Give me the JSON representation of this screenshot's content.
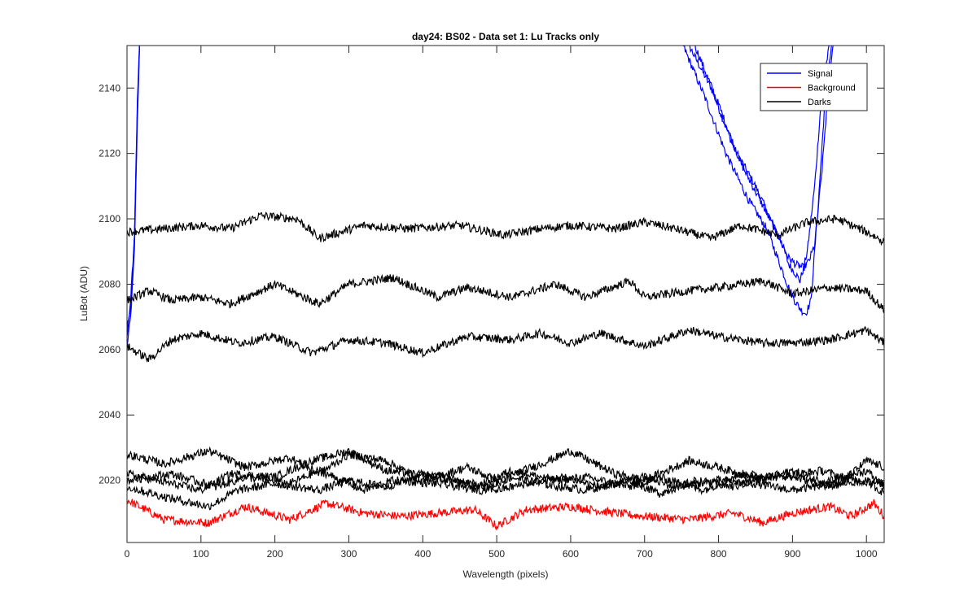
{
  "chart_data": {
    "type": "line",
    "title": "day24: BS02 - Data set 1: Lu Tracks only",
    "xlabel": "Wavelength (pixels)",
    "ylabel": "LuBot (ADU)",
    "xlim": [
      0,
      1024
    ],
    "ylim": [
      2001,
      2153
    ],
    "xticks": [
      0,
      100,
      200,
      300,
      400,
      500,
      600,
      700,
      800,
      900,
      1000
    ],
    "yticks": [
      2020,
      2040,
      2060,
      2080,
      2100,
      2120,
      2140
    ],
    "grid": false,
    "legend": {
      "location": "top-right",
      "entries": [
        "Signal",
        "Background",
        "Darks"
      ]
    },
    "colors": {
      "Signal": "#0000ff",
      "Background": "#ff0000",
      "Darks": "#000000"
    },
    "series": [
      {
        "name": "Signal",
        "group": "Signal",
        "color": "#0000ff",
        "x": [
          0,
          5,
          10,
          14,
          17,
          760,
          790,
          820,
          850,
          870,
          885,
          895,
          905,
          910,
          915,
          920,
          930,
          940,
          950
        ],
        "y": [
          2061,
          2070,
          2090,
          2130,
          2153,
          2153,
          2140,
          2122,
          2110,
          2100,
          2093,
          2086,
          2083,
          2081,
          2085,
          2090,
          2110,
          2140,
          2153
        ]
      },
      {
        "group": "Signal",
        "color": "#0000ff",
        "x": [
          0,
          5,
          10,
          14,
          17,
          752,
          780,
          810,
          840,
          865,
          880,
          893,
          903,
          912,
          918,
          925,
          935,
          945,
          953
        ],
        "y": [
          2066,
          2075,
          2095,
          2135,
          2153,
          2153,
          2138,
          2120,
          2106,
          2097,
          2088,
          2080,
          2075,
          2072,
          2071,
          2075,
          2105,
          2140,
          2153
        ]
      },
      {
        "group": "Signal",
        "color": "#0000ff",
        "x": [
          0,
          5,
          10,
          14,
          17,
          768,
          800,
          830,
          860,
          880,
          895,
          905,
          915,
          922,
          930,
          940,
          950,
          955
        ],
        "y": [
          2064,
          2073,
          2093,
          2133,
          2153,
          2153,
          2135,
          2117,
          2104,
          2095,
          2088,
          2086,
          2085,
          2087,
          2092,
          2115,
          2145,
          2153
        ]
      },
      {
        "name": "Background",
        "group": "Background",
        "color": "#ff0000",
        "x": [
          0,
          50,
          110,
          160,
          220,
          270,
          320,
          370,
          420,
          470,
          500,
          540,
          600,
          660,
          700,
          760,
          820,
          860,
          900,
          950,
          980,
          1010,
          1024
        ],
        "y": [
          2014,
          2008,
          2007,
          2012,
          2008,
          2013,
          2010,
          2009,
          2010,
          2011,
          2006,
          2011,
          2012,
          2010,
          2009,
          2008,
          2010,
          2007,
          2010,
          2012,
          2009,
          2013,
          2009
        ]
      },
      {
        "name": "Darks",
        "group": "Darks",
        "color": "#000000",
        "x": [
          0,
          50,
          100,
          140,
          180,
          230,
          260,
          320,
          380,
          450,
          510,
          560,
          600,
          660,
          700,
          740,
          790,
          830,
          880,
          920,
          960,
          1000,
          1024
        ],
        "y": [
          2096,
          2097,
          2098,
          2097,
          2101,
          2100,
          2094,
          2098,
          2097,
          2098,
          2095,
          2097,
          2098,
          2097,
          2099,
          2097,
          2094,
          2098,
          2095,
          2099,
          2100,
          2096,
          2093
        ]
      },
      {
        "group": "Darks",
        "color": "#000000",
        "x": [
          0,
          30,
          60,
          100,
          140,
          200,
          260,
          300,
          360,
          420,
          460,
          520,
          580,
          620,
          680,
          700,
          760,
          800,
          860,
          900,
          950,
          1000,
          1024
        ],
        "y": [
          2075,
          2078,
          2075,
          2076,
          2074,
          2080,
          2074,
          2080,
          2082,
          2076,
          2079,
          2076,
          2080,
          2076,
          2081,
          2076,
          2078,
          2079,
          2081,
          2077,
          2079,
          2078,
          2072
        ]
      },
      {
        "group": "Darks",
        "color": "#000000",
        "x": [
          0,
          30,
          60,
          100,
          150,
          200,
          250,
          300,
          350,
          400,
          460,
          520,
          560,
          600,
          640,
          700,
          760,
          800,
          860,
          900,
          950,
          1000,
          1024
        ],
        "y": [
          2061,
          2057,
          2063,
          2065,
          2062,
          2064,
          2059,
          2063,
          2062,
          2059,
          2064,
          2063,
          2065,
          2062,
          2065,
          2061,
          2066,
          2064,
          2062,
          2062,
          2063,
          2066,
          2062
        ]
      },
      {
        "group": "Darks",
        "color": "#000000",
        "x": [
          0,
          50,
          110,
          160,
          220,
          260,
          300,
          350,
          400,
          460,
          500,
          560,
          600,
          660,
          700,
          760,
          800,
          860,
          900,
          960,
          1000,
          1024
        ],
        "y": [
          2028,
          2025,
          2029,
          2024,
          2027,
          2022,
          2028,
          2026,
          2020,
          2024,
          2020,
          2025,
          2029,
          2022,
          2020,
          2026,
          2024,
          2020,
          2023,
          2018,
          2026,
          2024
        ]
      },
      {
        "group": "Darks",
        "color": "#000000",
        "x": [
          0,
          40,
          100,
          140,
          200,
          250,
          300,
          350,
          420,
          470,
          520,
          580,
          620,
          680,
          720,
          780,
          830,
          880,
          940,
          980,
          1024
        ],
        "y": [
          2022,
          2020,
          2017,
          2022,
          2021,
          2026,
          2029,
          2023,
          2021,
          2018,
          2023,
          2020,
          2021,
          2018,
          2021,
          2017,
          2022,
          2021,
          2023,
          2020,
          2019
        ]
      },
      {
        "group": "Darks",
        "color": "#000000",
        "x": [
          0,
          50,
          110,
          150,
          200,
          260,
          300,
          350,
          400,
          450,
          500,
          540,
          590,
          640,
          700,
          740,
          800,
          850,
          900,
          960,
          1000,
          1024
        ],
        "y": [
          2018,
          2015,
          2012,
          2017,
          2019,
          2017,
          2020,
          2018,
          2022,
          2020,
          2017,
          2019,
          2021,
          2018,
          2021,
          2018,
          2020,
          2019,
          2017,
          2019,
          2020,
          2016
        ]
      },
      {
        "group": "Darks",
        "color": "#000000",
        "x": [
          0,
          60,
          120,
          160,
          220,
          260,
          320,
          360,
          420,
          480,
          520,
          560,
          620,
          680,
          720,
          770,
          820,
          880,
          940,
          1000,
          1024
        ],
        "y": [
          2020,
          2022,
          2018,
          2021,
          2019,
          2023,
          2017,
          2020,
          2019,
          2017,
          2021,
          2019,
          2017,
          2020,
          2016,
          2020,
          2018,
          2022,
          2019,
          2023,
          2018
        ]
      }
    ]
  }
}
